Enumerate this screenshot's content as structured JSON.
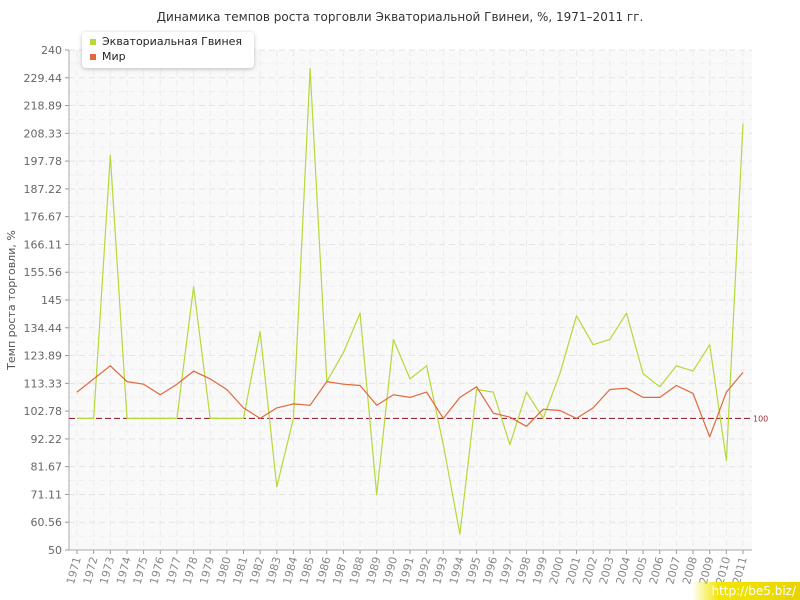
{
  "chart_data": {
    "type": "line",
    "title": "Динамика темпов роста торговли Экваториальной Гвинеи, %, 1971–2011 гг.",
    "ylabel": "Темп роста торговли, %",
    "xlabel": "",
    "ylim": [
      50,
      240
    ],
    "yticks": [
      "50",
      "60.56",
      "71.11",
      "81.67",
      "92.22",
      "102.78",
      "113.33",
      "123.89",
      "134.44",
      "145",
      "155.56",
      "166.11",
      "176.67",
      "187.22",
      "197.78",
      "208.33",
      "218.89",
      "229.44",
      "240"
    ],
    "categories": [
      "1971",
      "1972",
      "1973",
      "1974",
      "1975",
      "1976",
      "1977",
      "1978",
      "1979",
      "1980",
      "1981",
      "1982",
      "1983",
      "1984",
      "1985",
      "1986",
      "1987",
      "1988",
      "1989",
      "1990",
      "1991",
      "1992",
      "1993",
      "1994",
      "1995",
      "1996",
      "1997",
      "1998",
      "1999",
      "2000",
      "2001",
      "2002",
      "2003",
      "2004",
      "2005",
      "2006",
      "2007",
      "2008",
      "2009",
      "2010",
      "2011"
    ],
    "series": [
      {
        "name": "Экваториальная Гвинея",
        "color": "#b5d93a",
        "values": [
          100,
          100,
          200,
          100,
          100,
          100,
          100,
          150,
          100,
          100,
          100,
          133,
          74,
          100,
          233,
          114,
          125,
          140,
          71,
          130,
          115,
          120,
          90,
          56,
          111,
          110,
          90,
          110,
          100,
          117,
          139,
          128,
          130,
          140,
          117,
          112,
          120,
          118,
          128,
          84,
          212
        ]
      },
      {
        "name": "Мир",
        "color": "#e0683a",
        "values": [
          110,
          115,
          120,
          114,
          113,
          109,
          113,
          118,
          115,
          111,
          104,
          100,
          104,
          105.5,
          105,
          114,
          113,
          112.5,
          105,
          109,
          108,
          110,
          100,
          108,
          112,
          102,
          100.5,
          97,
          103.5,
          103,
          100,
          104,
          111,
          111.5,
          108,
          108,
          112.5,
          109.5,
          93,
          110,
          117.5
        ]
      }
    ],
    "reference_line": {
      "value": 100,
      "label": "100",
      "color": "#9b2a3a"
    },
    "grid": true,
    "legend_position": "top-left"
  },
  "watermark": "http://be5.biz/"
}
